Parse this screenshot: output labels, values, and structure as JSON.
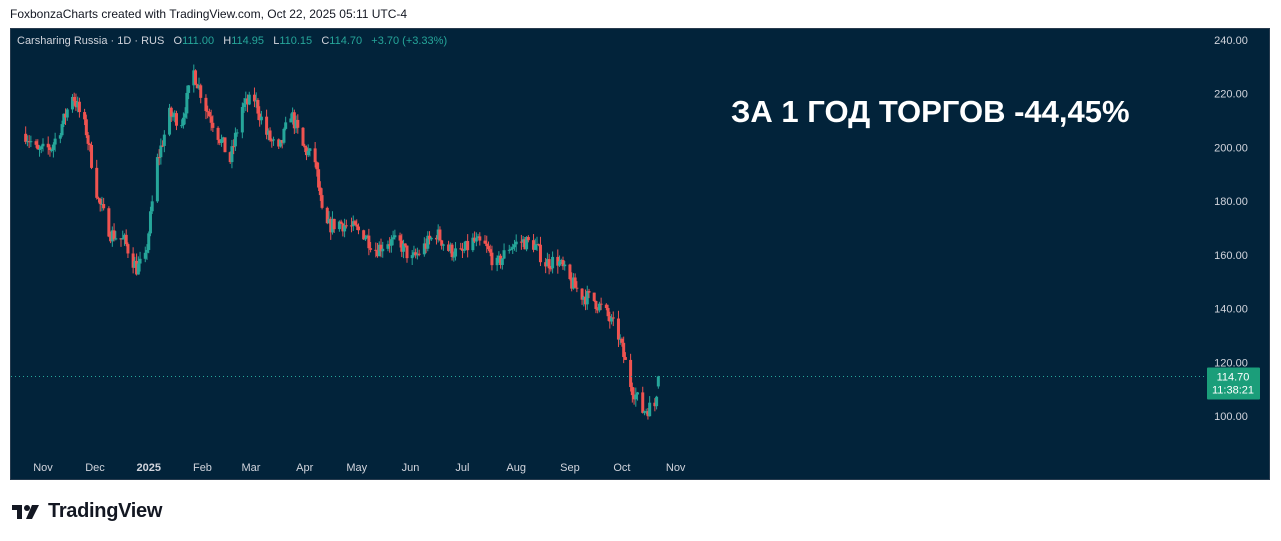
{
  "caption": "FoxbonzaCharts created with TradingView.com, Oct 22, 2025 05:11 UTC-4",
  "legend": {
    "symbol": "Carsharing Russia · 1D · RUS",
    "o_label": "O",
    "o_value": "111.00",
    "h_label": "H",
    "h_value": "114.95",
    "l_label": "L",
    "l_value": "110.15",
    "c_label": "C",
    "c_value": "114.70",
    "change": "+3.70 (+3.33%)"
  },
  "brand": "TradingView",
  "colors": {
    "background": "#02233a",
    "up": "#26a69a",
    "down": "#ef5350",
    "text": "#d1d4dc",
    "price_tag": "#1b9e7a"
  },
  "chart_data": {
    "type": "candlestick",
    "title": "",
    "annotation": "ЗА 1 ГОД ТОРГОВ -44,45%",
    "x_ticks": [
      "Nov",
      "Dec",
      "2025",
      "Feb",
      "Mar",
      "Apr",
      "May",
      "Jun",
      "Jul",
      "Aug",
      "Sep",
      "Oct",
      "Nov"
    ],
    "y_ticks": [
      "100.00",
      "120.00",
      "140.00",
      "160.00",
      "180.00",
      "200.00",
      "220.00",
      "240.00"
    ],
    "ylim": [
      85,
      240
    ],
    "grid": false,
    "last_price": {
      "value": 114.7,
      "label": "114.70",
      "countdown": "11:38:21"
    },
    "path": [
      [
        "2024-10-22",
        205
      ],
      [
        "2024-10-29",
        198
      ],
      [
        "2024-11-06",
        200
      ],
      [
        "2024-11-13",
        210
      ],
      [
        "2024-11-18",
        220
      ],
      [
        "2024-11-26",
        206
      ],
      [
        "2024-12-03",
        180
      ],
      [
        "2024-12-10",
        168
      ],
      [
        "2024-12-18",
        165
      ],
      [
        "2024-12-25",
        155
      ],
      [
        "2024-12-30",
        158
      ],
      [
        "2025-01-06",
        195
      ],
      [
        "2025-01-13",
        212
      ],
      [
        "2025-01-20",
        210
      ],
      [
        "2025-01-27",
        228
      ],
      [
        "2025-02-03",
        215
      ],
      [
        "2025-02-10",
        205
      ],
      [
        "2025-02-17",
        195
      ],
      [
        "2025-02-24",
        215
      ],
      [
        "2025-03-03",
        218
      ],
      [
        "2025-03-10",
        205
      ],
      [
        "2025-03-17",
        198
      ],
      [
        "2025-03-24",
        213
      ],
      [
        "2025-03-31",
        200
      ],
      [
        "2025-04-07",
        195
      ],
      [
        "2025-04-12",
        170
      ],
      [
        "2025-04-21",
        172
      ],
      [
        "2025-04-28",
        170
      ],
      [
        "2025-05-05",
        168
      ],
      [
        "2025-05-12",
        162
      ],
      [
        "2025-05-19",
        165
      ],
      [
        "2025-05-26",
        164
      ],
      [
        "2025-06-02",
        158
      ],
      [
        "2025-06-09",
        163
      ],
      [
        "2025-06-16",
        168
      ],
      [
        "2025-06-23",
        162
      ],
      [
        "2025-06-30",
        160
      ],
      [
        "2025-07-07",
        165
      ],
      [
        "2025-07-14",
        163
      ],
      [
        "2025-07-21",
        156
      ],
      [
        "2025-07-28",
        163
      ],
      [
        "2025-08-04",
        165
      ],
      [
        "2025-08-11",
        164
      ],
      [
        "2025-08-18",
        157
      ],
      [
        "2025-08-25",
        158
      ],
      [
        "2025-09-01",
        150
      ],
      [
        "2025-09-08",
        145
      ],
      [
        "2025-09-15",
        143
      ],
      [
        "2025-09-22",
        138
      ],
      [
        "2025-09-29",
        130
      ],
      [
        "2025-10-06",
        112
      ],
      [
        "2025-10-13",
        102
      ],
      [
        "2025-10-20",
        104
      ],
      [
        "2025-10-22",
        114.7
      ]
    ]
  }
}
